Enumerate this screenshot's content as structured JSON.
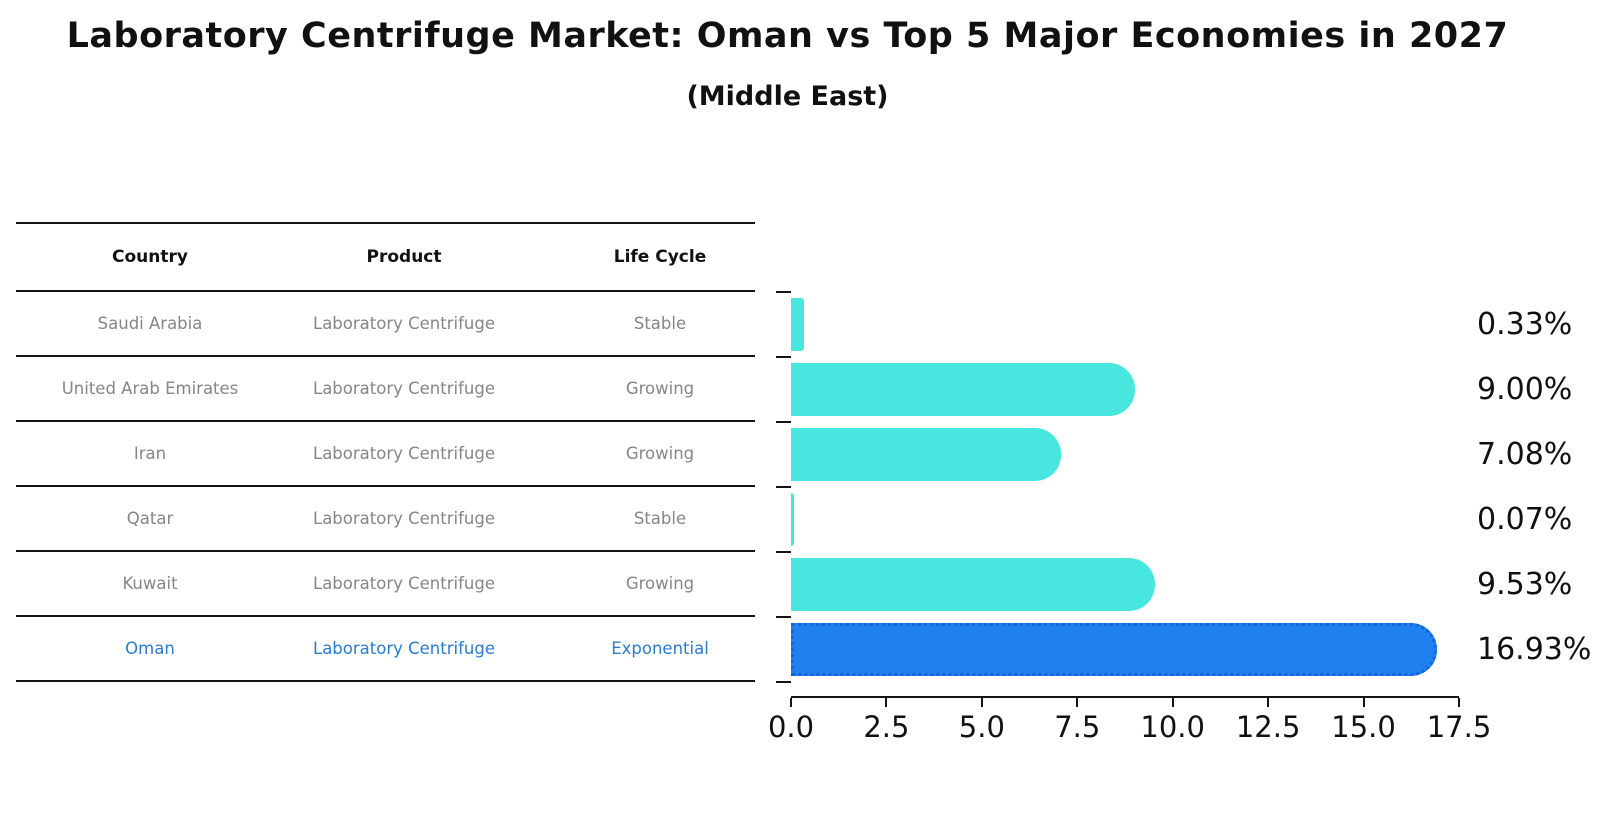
{
  "header": {
    "title": "Laboratory Centrifuge Market: Oman vs Top 5 Major Economies in 2027",
    "subtitle": "(Middle East)"
  },
  "table": {
    "columns": [
      "Country",
      "Product",
      "Life Cycle"
    ],
    "rows": [
      {
        "country": "Saudi Arabia",
        "product": "Laboratory Centrifuge",
        "life_cycle": "Stable",
        "highlight": false
      },
      {
        "country": "United Arab Emirates",
        "product": "Laboratory Centrifuge",
        "life_cycle": "Growing",
        "highlight": false
      },
      {
        "country": "Iran",
        "product": "Laboratory Centrifuge",
        "life_cycle": "Growing",
        "highlight": false
      },
      {
        "country": "Qatar",
        "product": "Laboratory Centrifuge",
        "life_cycle": "Stable",
        "highlight": false
      },
      {
        "country": "Kuwait",
        "product": "Laboratory Centrifuge",
        "life_cycle": "Growing",
        "highlight": false
      },
      {
        "country": "Oman",
        "product": "Laboratory Centrifuge",
        "life_cycle": "Exponential",
        "highlight": true
      }
    ]
  },
  "chart_data": {
    "type": "bar",
    "orientation": "horizontal",
    "title": "Laboratory Centrifuge Market: Oman vs Top 5 Major Economies in 2027",
    "subtitle": "(Middle East)",
    "categories": [
      "Saudi Arabia",
      "United Arab Emirates",
      "Iran",
      "Qatar",
      "Kuwait",
      "Oman"
    ],
    "values": [
      0.33,
      9.0,
      7.08,
      0.07,
      9.53,
      16.93
    ],
    "value_labels": [
      "0.33%",
      "9.00%",
      "7.08%",
      "0.07%",
      "9.53%",
      "16.93%"
    ],
    "x_ticks": [
      "0.0",
      "2.5",
      "5.0",
      "7.5",
      "10.0",
      "12.5",
      "15.0",
      "17.5"
    ],
    "xlim": [
      0,
      17.5
    ],
    "grid": false,
    "legend": null,
    "highlight_index": 5,
    "bar_color": "#47e6df",
    "highlight_fill": "#1f80f0",
    "highlight_edge": "#1565d8",
    "axis_color": "#141414",
    "label_color": "#111111",
    "row_text_color": "#868686",
    "highlight_text_color": "#2b7bce"
  }
}
